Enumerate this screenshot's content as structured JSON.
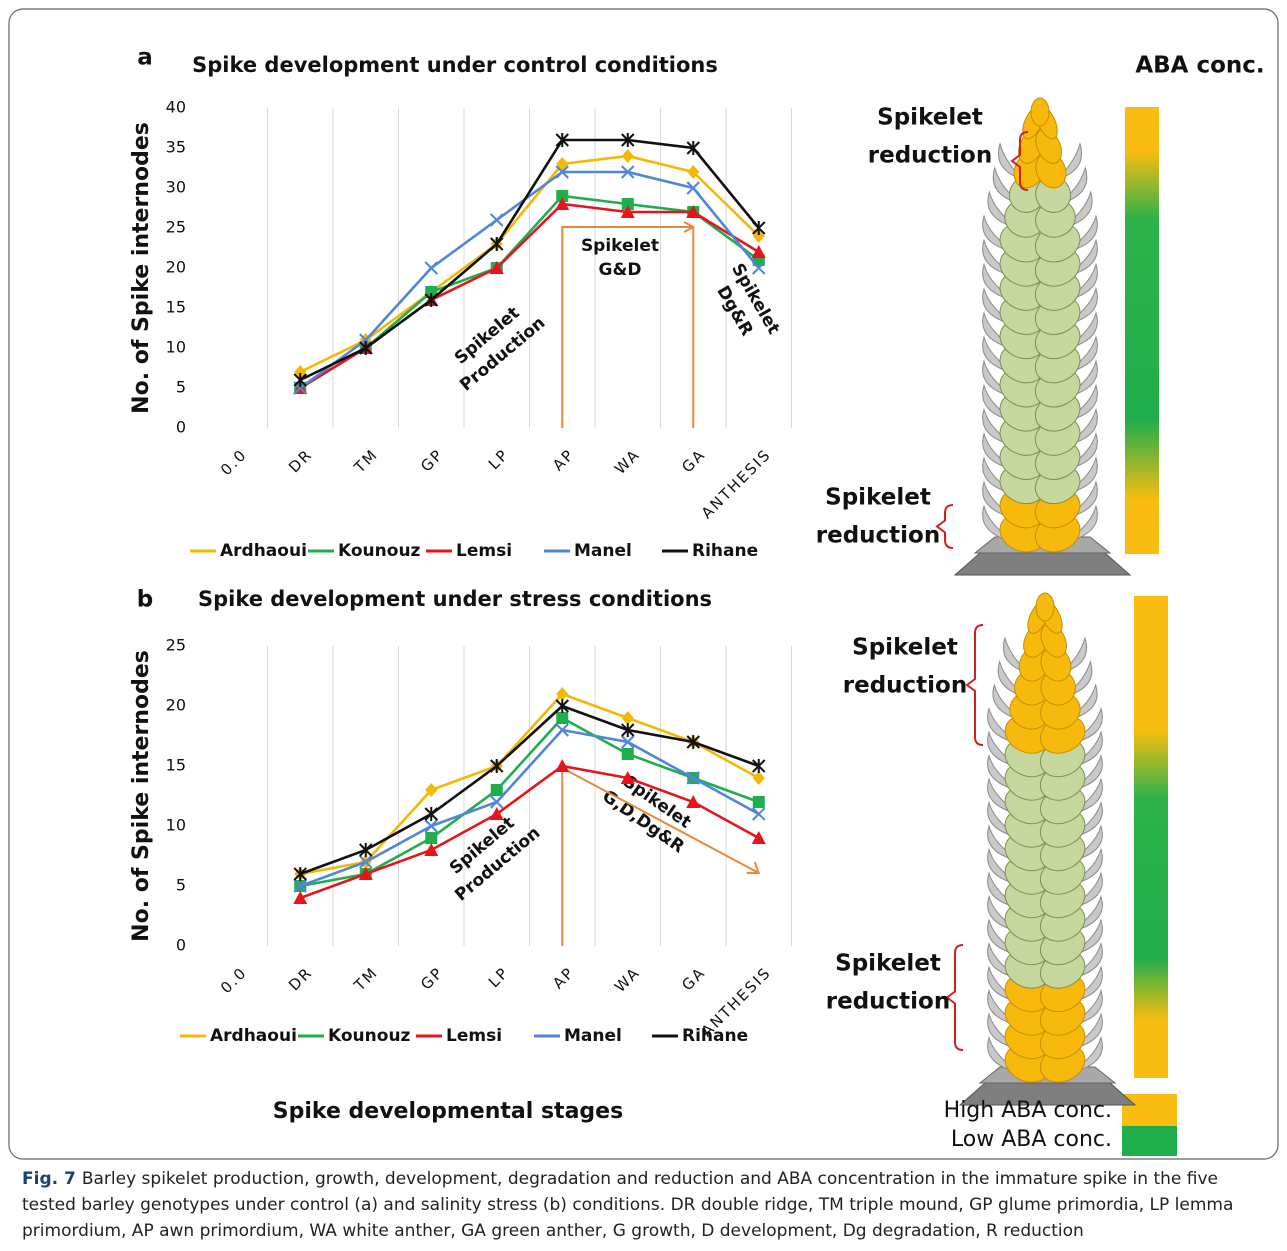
{
  "chart_data": [
    {
      "type": "line",
      "panel": "a",
      "title": "Spike development under control conditions",
      "y_label": "No. of Spike internodes",
      "categories": [
        "0.0",
        "DR",
        "TM",
        "GP",
        "LP",
        "AP",
        "WA",
        "GA",
        "ANTHESIS"
      ],
      "series": [
        {
          "name": "Ardhaoui",
          "color": "#f5b800",
          "marker": "diamond",
          "values": [
            null,
            7,
            11,
            17,
            23,
            33,
            34,
            32,
            24
          ]
        },
        {
          "name": "Kounouz",
          "color": "#1fae4b",
          "marker": "square",
          "values": [
            null,
            5,
            10,
            17,
            20,
            29,
            28,
            27,
            21
          ]
        },
        {
          "name": "Lemsi",
          "color": "#e8141c",
          "marker": "triangle",
          "values": [
            null,
            5,
            10,
            16,
            20,
            28,
            27,
            27,
            22
          ]
        },
        {
          "name": "Manel",
          "color": "#4f86d8",
          "marker": "x",
          "values": [
            null,
            5,
            11,
            20,
            26,
            32,
            32,
            30,
            20
          ]
        },
        {
          "name": "Rihane",
          "color": "#111111",
          "marker": "asterisk",
          "values": [
            null,
            6,
            10,
            16,
            23,
            36,
            36,
            35,
            25
          ]
        }
      ],
      "ylim": [
        0,
        40
      ],
      "yticks": [
        0,
        5,
        10,
        15,
        20,
        25,
        30,
        35,
        40
      ],
      "grid": "vertical",
      "annotations": [
        [
          "Spikelet",
          "Production"
        ],
        [
          "Spikelet",
          "G&D"
        ],
        [
          "Spikelet",
          "Dg&R"
        ]
      ]
    },
    {
      "type": "line",
      "panel": "b",
      "title": "Spike development under stress conditions",
      "y_label": "No. of Spike internodes",
      "x_label": "Spike developmental stages",
      "categories": [
        "0.0",
        "DR",
        "TM",
        "GP",
        "LP",
        "AP",
        "WA",
        "GA",
        "ANTHESIS"
      ],
      "series": [
        {
          "name": "Ardhaoui",
          "color": "#f5b800",
          "marker": "diamond",
          "values": [
            null,
            6,
            7,
            13,
            15,
            21,
            19,
            17,
            14
          ]
        },
        {
          "name": "Kounouz",
          "color": "#1fae4b",
          "marker": "square",
          "values": [
            null,
            5,
            6,
            9,
            13,
            19,
            16,
            14,
            12
          ]
        },
        {
          "name": "Lemsi",
          "color": "#e8141c",
          "marker": "triangle",
          "values": [
            null,
            4,
            6,
            8,
            11,
            15,
            14,
            12,
            9
          ]
        },
        {
          "name": "Manel",
          "color": "#4f86d8",
          "marker": "x",
          "values": [
            null,
            5,
            7,
            10,
            12,
            18,
            17,
            14,
            11
          ]
        },
        {
          "name": "Rihane",
          "color": "#111111",
          "marker": "asterisk",
          "values": [
            null,
            6,
            8,
            11,
            15,
            20,
            18,
            17,
            15
          ]
        }
      ],
      "ylim": [
        0,
        25
      ],
      "yticks": [
        0,
        5,
        10,
        15,
        20,
        25
      ],
      "grid": "vertical",
      "annotations": [
        [
          "Spikelet",
          "Production"
        ],
        [
          "Spikelet",
          "G,D,Dg&R"
        ]
      ]
    }
  ],
  "side": {
    "heading": "ABA conc.",
    "reduction_labels": [
      [
        "Spikelet",
        "reduction"
      ],
      [
        "Spikelet",
        "reduction"
      ],
      [
        "Spikelet",
        "reduction"
      ],
      [
        "Spikelet",
        "reduction"
      ]
    ],
    "legend": [
      "High ABA conc.",
      "Low ABA conc."
    ]
  },
  "caption": {
    "label": "Fig. 7",
    "text": "Barley spikelet production, growth, development, degradation and reduction and ABA concentration in the immature spike in the five tested barley genotypes under control (a) and salinity stress (b) conditions. DR double ridge, TM triple mound, GP glume primordia, LP lemma primordium, AP awn primordium, WA white anther, GA green anther, G growth, D development, Dg degradation, R reduction"
  }
}
